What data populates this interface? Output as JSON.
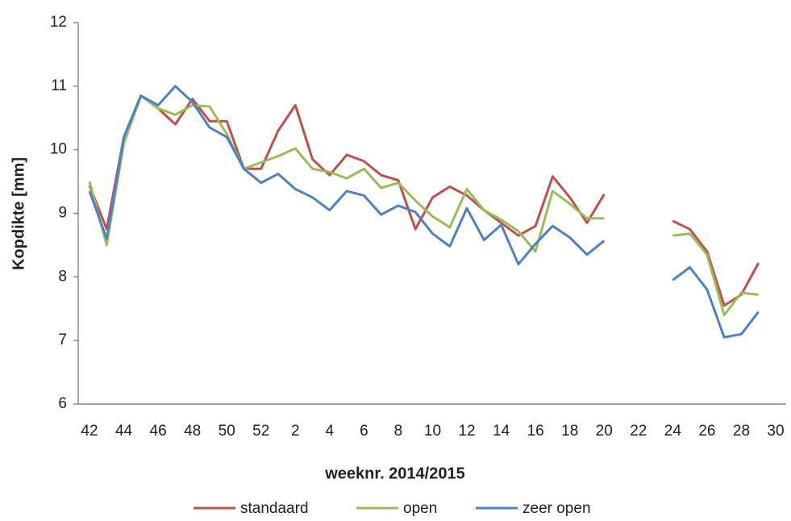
{
  "chart_data": {
    "type": "line",
    "x_label": "weeknr. 2014/2015",
    "y_label": "Kopdikte [mm]",
    "categories": [
      "42",
      null,
      "44",
      null,
      "46",
      null,
      "48",
      null,
      "50",
      null,
      "52",
      null,
      "2",
      null,
      "4",
      null,
      "6",
      null,
      "8",
      null,
      "10",
      null,
      "12",
      null,
      "14",
      null,
      "16",
      null,
      "18",
      null,
      "20",
      null,
      "22",
      null,
      "24",
      null,
      "26",
      null,
      "28",
      null,
      "30"
    ],
    "ylim": [
      6,
      12
    ],
    "yticks": [
      6,
      7,
      8,
      9,
      10,
      11,
      12
    ],
    "grid": false,
    "legend": "bottom",
    "series": [
      {
        "name": "standaard",
        "color": "#c0504d",
        "values": [
          9.44,
          8.75,
          10.2,
          10.85,
          10.65,
          10.4,
          10.8,
          10.45,
          10.45,
          9.7,
          9.7,
          10.3,
          10.7,
          9.85,
          9.6,
          9.92,
          9.82,
          9.6,
          9.52,
          8.75,
          9.25,
          9.42,
          9.28,
          9.05,
          8.85,
          8.65,
          8.8,
          9.58,
          9.25,
          8.85,
          9.3,
          null,
          null,
          null,
          8.88,
          8.75,
          8.4,
          7.55,
          7.72,
          8.22,
          null
        ]
      },
      {
        "name": "open",
        "color": "#9bbb59",
        "values": [
          9.5,
          8.5,
          10.1,
          10.85,
          10.65,
          10.55,
          10.7,
          10.68,
          10.25,
          9.7,
          9.8,
          9.9,
          10.02,
          9.7,
          9.65,
          9.55,
          9.7,
          9.4,
          9.48,
          9.2,
          8.95,
          8.78,
          9.38,
          9.05,
          8.9,
          8.72,
          8.4,
          9.35,
          9.15,
          8.92,
          8.92,
          null,
          null,
          null,
          8.65,
          8.68,
          8.35,
          7.4,
          7.75,
          7.72,
          null
        ]
      },
      {
        "name": "zeer open",
        "color": "#4f81bd",
        "values": [
          9.35,
          8.6,
          10.2,
          10.85,
          10.7,
          11.0,
          10.75,
          10.35,
          10.2,
          9.7,
          9.48,
          9.62,
          9.38,
          9.25,
          9.05,
          9.35,
          9.28,
          8.98,
          9.12,
          9.02,
          8.68,
          8.48,
          9.08,
          8.58,
          8.82,
          8.2,
          8.52,
          8.8,
          8.62,
          8.35,
          8.57,
          null,
          null,
          null,
          7.95,
          8.15,
          7.8,
          7.05,
          7.1,
          7.45,
          null
        ]
      }
    ]
  }
}
